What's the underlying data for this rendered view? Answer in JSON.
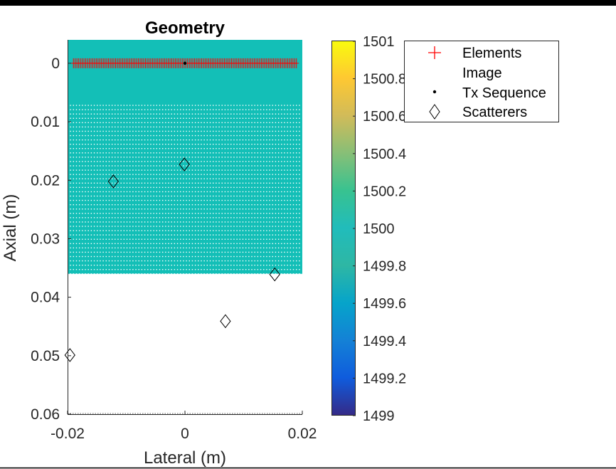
{
  "chart_data": {
    "type": "scatter",
    "title": "Geometry",
    "xlabel": "Lateral (m)",
    "ylabel": "Axial (m)",
    "xlim": [
      -0.02,
      0.02
    ],
    "ylim": [
      -0.004,
      0.06
    ],
    "y_reversed": true,
    "x_ticks": [
      "-0.02",
      "0",
      "0.02"
    ],
    "x_tick_values": [
      -0.02,
      0,
      0.02
    ],
    "y_ticks": [
      "0",
      "0.01",
      "0.02",
      "0.03",
      "0.04",
      "0.05",
      "0.06"
    ],
    "y_tick_values": [
      0,
      0.01,
      0.02,
      0.03,
      0.04,
      0.05,
      0.06
    ],
    "medium": {
      "x_range": [
        -0.02,
        0.02
      ],
      "z_range": [
        -0.004,
        0.036
      ],
      "value": 1500
    },
    "image_grid": {
      "x_range": [
        -0.0195,
        0.0195
      ],
      "z_range": [
        0.0072,
        0.036
      ],
      "nx": 78,
      "nz": 40
    },
    "series": [
      {
        "name": "Elements",
        "marker": "+",
        "color": "#ff0000",
        "count": 128,
        "x_range": [
          -0.019,
          0.019
        ],
        "z": 0
      },
      {
        "name": "Image",
        "marker": ".",
        "color": "#ffffff"
      },
      {
        "name": "Tx Sequence",
        "marker": "•",
        "color": "#000000",
        "x": [
          0
        ],
        "y": [
          0
        ]
      },
      {
        "name": "Scatterers",
        "marker": "diamond",
        "color": "#000000",
        "x": [
          -0.0122,
          -0.0001,
          0.0153,
          0.0069,
          -0.0196
        ],
        "y": [
          0.0202,
          0.0173,
          0.0361,
          0.0441,
          0.0499
        ]
      }
    ],
    "colorbar": {
      "colormap": "parula",
      "range": [
        1499,
        1501
      ],
      "ticks": [
        "1499",
        "1499.2",
        "1499.4",
        "1499.6",
        "1499.8",
        "1500",
        "1500.2",
        "1500.4",
        "1500.6",
        "1500.8",
        "1501"
      ],
      "tick_values": [
        1499,
        1499.2,
        1499.4,
        1499.6,
        1499.8,
        1500,
        1500.2,
        1500.4,
        1500.6,
        1500.8,
        1501
      ]
    },
    "legend_position": "top-right",
    "grid": false
  }
}
